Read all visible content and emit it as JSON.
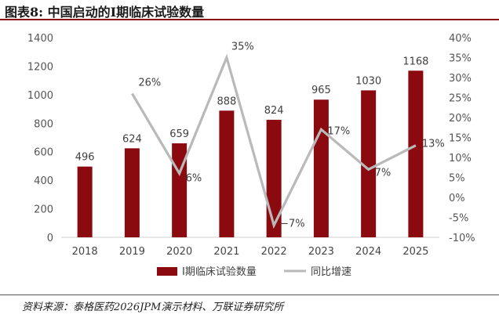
{
  "header": {
    "title": "图表8:  中国启动的I期临床试验数量"
  },
  "footer": {
    "source": "资料来源：泰格医药2026JPM演示材料、万联证券研究所"
  },
  "colors": {
    "bar": "#8B0A10",
    "line": "#B9B9B9",
    "rule": "#8A0F13"
  },
  "chart_data": {
    "type": "bar",
    "categories": [
      "2018",
      "2019",
      "2020",
      "2021",
      "2022",
      "2023",
      "2024",
      "2025"
    ],
    "series": [
      {
        "name": "I期临床试验数量",
        "type": "bar",
        "axis": "left",
        "values": [
          496,
          624,
          659,
          888,
          824,
          965,
          1030,
          1168
        ],
        "labels": [
          "496",
          "624",
          "659",
          "888",
          "824",
          "965",
          "1030",
          "1168"
        ]
      },
      {
        "name": "同比增速",
        "type": "line",
        "axis": "right",
        "values": [
          null,
          26,
          6,
          35,
          -7,
          17,
          7,
          13
        ],
        "labels": [
          "",
          "26%",
          "6%",
          "35%",
          "−7%",
          "17%",
          "7%",
          "13%"
        ]
      }
    ],
    "left_axis": {
      "ylim": [
        0,
        1400
      ],
      "ticks": [
        "0",
        "200",
        "400",
        "600",
        "800",
        "1000",
        "1200",
        "1400"
      ]
    },
    "right_axis": {
      "ylim": [
        -10,
        40
      ],
      "ticks": [
        "-10%",
        "-5%",
        "0%",
        "5%",
        "10%",
        "15%",
        "20%",
        "25%",
        "30%",
        "35%",
        "40%"
      ]
    },
    "legend_position": "bottom",
    "grid": false
  }
}
